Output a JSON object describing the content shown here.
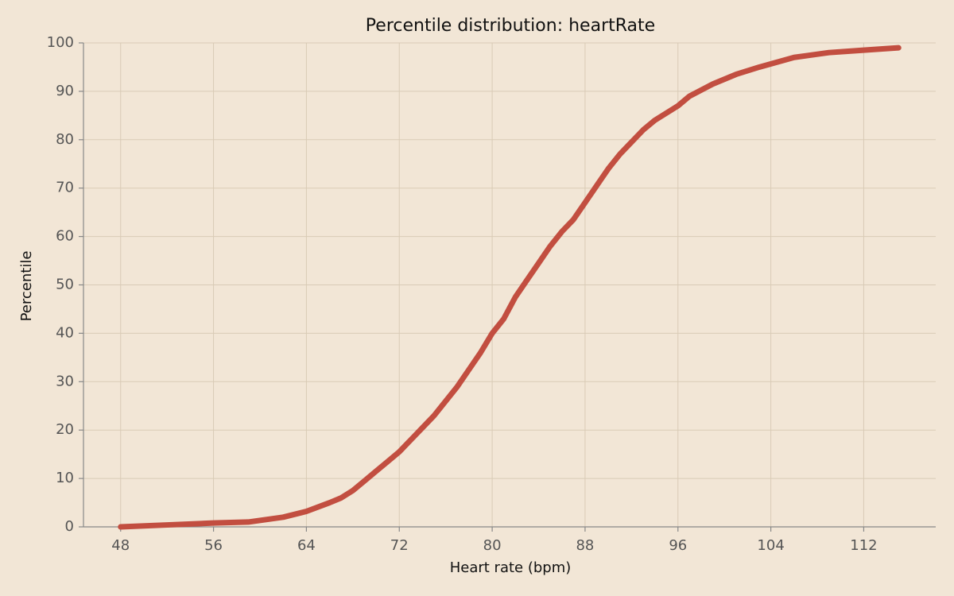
{
  "chart_data": {
    "type": "line",
    "title": "Percentile distribution: heartRate",
    "x_label": "Heart rate (bpm)",
    "y_label": "Percentile",
    "x": [
      48,
      52,
      56,
      59,
      62,
      64,
      66,
      67,
      68,
      69,
      70,
      71,
      72,
      73,
      74,
      75,
      76,
      77,
      78,
      79,
      80,
      81,
      82,
      83,
      84,
      85,
      86,
      87,
      88,
      89,
      90,
      91,
      92,
      93,
      94,
      96,
      97,
      99,
      101,
      103,
      106,
      109,
      112,
      115
    ],
    "series": [
      {
        "name": "heartRate",
        "color": "#c24e40",
        "values": [
          0,
          0.4,
          0.8,
          1,
          2,
          3.2,
          5,
          6,
          7.5,
          9.5,
          11.5,
          13.5,
          15.5,
          18,
          20.5,
          23,
          26,
          29,
          32.5,
          36,
          40,
          43,
          47.5,
          51,
          54.5,
          58,
          61,
          63.5,
          67,
          70.5,
          74,
          77,
          79.5,
          82,
          84,
          87,
          89,
          91.5,
          93.5,
          95,
          97,
          98,
          98.5,
          99
        ]
      }
    ],
    "xlim": [
      44.8,
      118.2
    ],
    "ylim": [
      0,
      100
    ],
    "xticks": [
      48,
      56,
      64,
      72,
      80,
      88,
      96,
      104,
      112
    ],
    "yticks": [
      0,
      10,
      20,
      30,
      40,
      50,
      60,
      70,
      80,
      90,
      100
    ],
    "grid": true
  }
}
